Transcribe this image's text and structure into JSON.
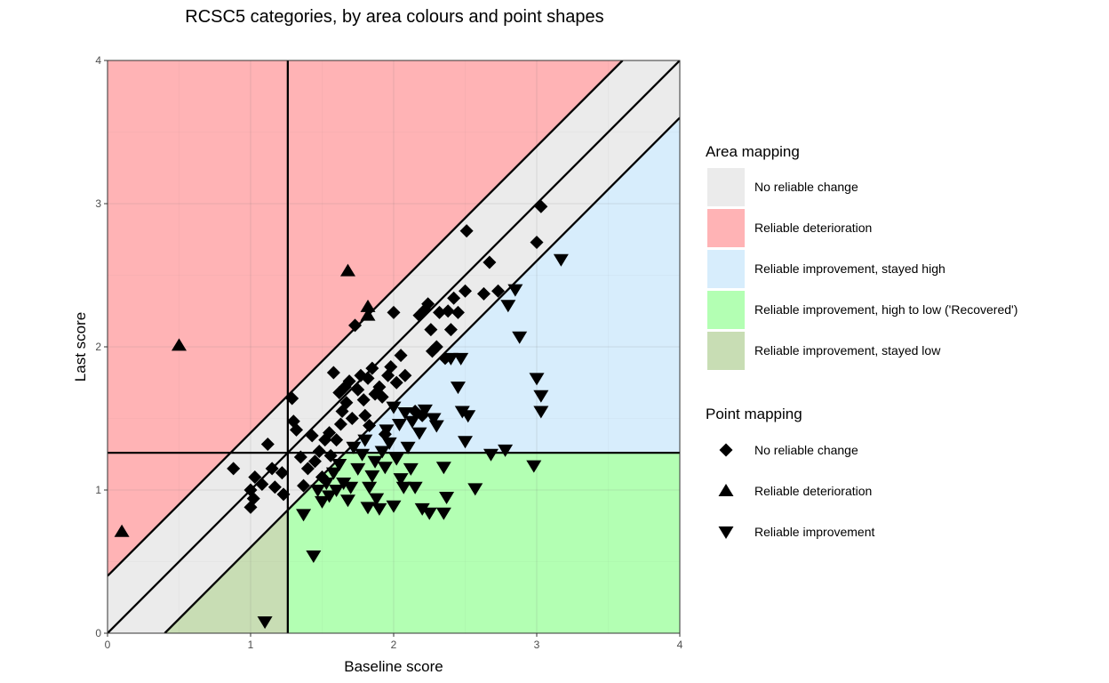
{
  "chart_data": {
    "type": "scatter",
    "title": "RCSC5 categories, by area colours and point shapes",
    "xlabel": "Baseline score",
    "ylabel": "Last score",
    "xlim": [
      0,
      4
    ],
    "ylim": [
      0,
      4
    ],
    "xticks": [
      "0",
      "1",
      "2",
      "3",
      "4"
    ],
    "yticks": [
      "0",
      "1",
      "2",
      "3",
      "4"
    ],
    "cutoff": 1.26,
    "rci": 0.4,
    "area_legend": {
      "title": "Area mapping",
      "items": [
        {
          "label": "No reliable change",
          "color": "#EBEBEB"
        },
        {
          "label": "Reliable deterioration",
          "color": "#FFB3B5"
        },
        {
          "label": "Reliable improvement, stayed high",
          "color": "#D7EDFC"
        },
        {
          "label": "Reliable improvement, high to low ('Recovered')",
          "color": "#B3FFB3"
        },
        {
          "label": "Reliable improvement, stayed low",
          "color": "#C8DDB4"
        }
      ]
    },
    "point_legend": {
      "title": "Point mapping",
      "items": [
        {
          "label": "No reliable change",
          "shape": "diamond"
        },
        {
          "label": "Reliable deterioration",
          "shape": "triangle-up"
        },
        {
          "label": "Reliable improvement",
          "shape": "triangle-down"
        }
      ]
    },
    "series": [
      {
        "name": "Reliable deterioration",
        "shape": "triangle-up",
        "points": [
          [
            0.1,
            0.71
          ],
          [
            0.5,
            2.01
          ],
          [
            1.68,
            2.53
          ],
          [
            1.82,
            2.28
          ],
          [
            1.82,
            2.22
          ]
        ]
      },
      {
        "name": "No reliable change",
        "shape": "diamond",
        "points": [
          [
            0.88,
            1.15
          ],
          [
            1.0,
            1.0
          ],
          [
            1.0,
            0.88
          ],
          [
            1.02,
            0.94
          ],
          [
            1.03,
            1.09
          ],
          [
            1.08,
            1.04
          ],
          [
            1.12,
            1.32
          ],
          [
            1.15,
            1.15
          ],
          [
            1.17,
            1.02
          ],
          [
            1.22,
            1.12
          ],
          [
            1.23,
            0.97
          ],
          [
            1.29,
            1.64
          ],
          [
            1.3,
            1.48
          ],
          [
            1.32,
            1.42
          ],
          [
            1.35,
            1.23
          ],
          [
            1.37,
            1.03
          ],
          [
            1.4,
            1.15
          ],
          [
            1.43,
            1.38
          ],
          [
            1.45,
            1.2
          ],
          [
            1.48,
            1.27
          ],
          [
            1.5,
            1.09
          ],
          [
            1.52,
            1.35
          ],
          [
            1.55,
            1.4
          ],
          [
            1.56,
            1.24
          ],
          [
            1.58,
            1.82
          ],
          [
            1.6,
            1.35
          ],
          [
            1.62,
            1.68
          ],
          [
            1.63,
            1.46
          ],
          [
            1.64,
            1.55
          ],
          [
            1.66,
            1.72
          ],
          [
            1.67,
            1.61
          ],
          [
            1.69,
            1.76
          ],
          [
            1.71,
            1.5
          ],
          [
            1.73,
            2.15
          ],
          [
            1.75,
            1.7
          ],
          [
            1.77,
            1.8
          ],
          [
            1.79,
            1.63
          ],
          [
            1.8,
            1.52
          ],
          [
            1.82,
            1.78
          ],
          [
            1.83,
            1.45
          ],
          [
            1.85,
            1.85
          ],
          [
            1.87,
            1.67
          ],
          [
            1.9,
            1.72
          ],
          [
            1.92,
            1.65
          ],
          [
            1.94,
            1.39
          ],
          [
            1.96,
            1.8
          ],
          [
            1.98,
            1.86
          ],
          [
            2.0,
            2.24
          ],
          [
            2.02,
            1.75
          ],
          [
            2.05,
            1.94
          ],
          [
            2.08,
            1.8
          ],
          [
            2.15,
            1.55
          ],
          [
            2.18,
            2.22
          ],
          [
            2.2,
            1.52
          ],
          [
            2.22,
            2.26
          ],
          [
            2.24,
            2.3
          ],
          [
            2.26,
            2.12
          ],
          [
            2.27,
            1.97
          ],
          [
            2.3,
            2.0
          ],
          [
            2.32,
            2.24
          ],
          [
            2.36,
            1.92
          ],
          [
            2.38,
            2.25
          ],
          [
            2.4,
            2.12
          ],
          [
            2.42,
            2.34
          ],
          [
            2.45,
            2.24
          ],
          [
            2.5,
            2.39
          ],
          [
            2.51,
            2.81
          ],
          [
            2.63,
            2.37
          ],
          [
            2.67,
            2.59
          ],
          [
            2.73,
            2.39
          ],
          [
            3.0,
            2.73
          ],
          [
            3.03,
            2.98
          ]
        ]
      },
      {
        "name": "Reliable improvement",
        "shape": "triangle-down",
        "points": [
          [
            1.1,
            0.08
          ],
          [
            1.37,
            0.83
          ],
          [
            1.44,
            0.54
          ],
          [
            1.47,
            1.0
          ],
          [
            1.5,
            0.92
          ],
          [
            1.53,
            1.05
          ],
          [
            1.55,
            0.96
          ],
          [
            1.58,
            1.12
          ],
          [
            1.6,
            1.0
          ],
          [
            1.62,
            1.18
          ],
          [
            1.65,
            1.05
          ],
          [
            1.68,
            0.93
          ],
          [
            1.7,
            1.02
          ],
          [
            1.72,
            1.3
          ],
          [
            1.75,
            1.15
          ],
          [
            1.78,
            1.25
          ],
          [
            1.8,
            1.35
          ],
          [
            1.82,
            0.88
          ],
          [
            1.83,
            1.02
          ],
          [
            1.85,
            1.1
          ],
          [
            1.87,
            1.2
          ],
          [
            1.88,
            0.94
          ],
          [
            1.9,
            0.87
          ],
          [
            1.92,
            1.27
          ],
          [
            1.94,
            1.16
          ],
          [
            1.95,
            1.42
          ],
          [
            1.97,
            1.33
          ],
          [
            2.0,
            1.58
          ],
          [
            2.0,
            0.89
          ],
          [
            2.02,
            1.22
          ],
          [
            2.04,
            1.46
          ],
          [
            2.05,
            1.08
          ],
          [
            2.07,
            1.02
          ],
          [
            2.08,
            1.54
          ],
          [
            2.1,
            1.3
          ],
          [
            2.12,
            1.15
          ],
          [
            2.13,
            1.48
          ],
          [
            2.15,
            1.02
          ],
          [
            2.18,
            1.4
          ],
          [
            2.2,
            0.87
          ],
          [
            2.22,
            1.56
          ],
          [
            2.25,
            0.84
          ],
          [
            2.28,
            1.5
          ],
          [
            2.3,
            1.45
          ],
          [
            2.35,
            0.84
          ],
          [
            2.35,
            1.16
          ],
          [
            2.37,
            0.95
          ],
          [
            2.4,
            1.92
          ],
          [
            2.45,
            1.72
          ],
          [
            2.47,
            1.92
          ],
          [
            2.48,
            1.55
          ],
          [
            2.5,
            1.34
          ],
          [
            2.52,
            1.52
          ],
          [
            2.57,
            1.01
          ],
          [
            2.68,
            1.25
          ],
          [
            2.78,
            1.28
          ],
          [
            2.8,
            2.29
          ],
          [
            2.88,
            2.07
          ],
          [
            2.85,
            2.4
          ],
          [
            2.98,
            1.17
          ],
          [
            3.0,
            1.78
          ],
          [
            3.03,
            1.66
          ],
          [
            3.03,
            1.55
          ],
          [
            3.17,
            2.61
          ]
        ]
      }
    ]
  }
}
